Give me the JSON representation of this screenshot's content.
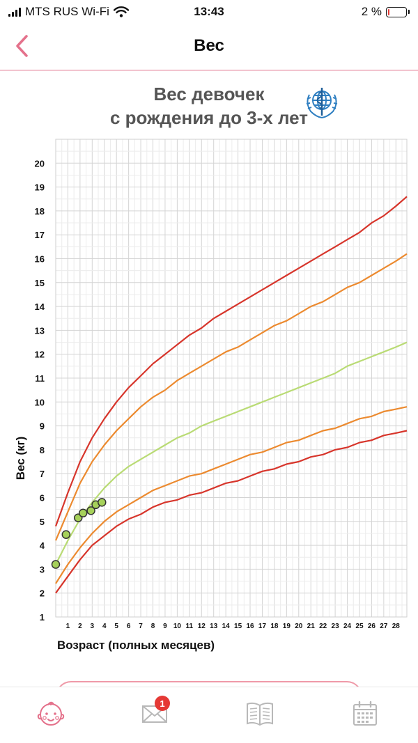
{
  "status_bar": {
    "carrier": "MTS RUS Wi-Fi",
    "time": "13:43",
    "battery": "2 %"
  },
  "nav": {
    "title": "Вес"
  },
  "header": {
    "title_line1": "Вес девочек",
    "title_line2": "с рождения до 3-х лет"
  },
  "chart_data": {
    "type": "line",
    "title": "Вес девочек с рождения до 3-х лет",
    "xlabel": "Возраст (полных месяцев)",
    "ylabel": "Вес (кг)",
    "xlim": [
      0,
      28.9
    ],
    "ylim": [
      1,
      21
    ],
    "x_ticks": [
      1,
      2,
      3,
      4,
      5,
      6,
      7,
      8,
      9,
      10,
      11,
      12,
      13,
      14,
      15,
      16,
      17,
      18,
      19,
      20,
      21,
      22,
      23,
      24,
      25,
      26,
      27,
      28
    ],
    "y_ticks": [
      1,
      2,
      3,
      4,
      5,
      6,
      7,
      8,
      9,
      10,
      11,
      12,
      13,
      14,
      15,
      16,
      17,
      18,
      19,
      20
    ],
    "grid": true,
    "series": [
      {
        "color": "#d7352b",
        "x": [
          0,
          1,
          2,
          3,
          4,
          5,
          6,
          7,
          8,
          9,
          10,
          11,
          12,
          13,
          14,
          15,
          16,
          17,
          18,
          19,
          20,
          21,
          22,
          23,
          24,
          25,
          26,
          27,
          28,
          28.9
        ],
        "values": [
          4.8,
          6.2,
          7.5,
          8.5,
          9.3,
          10.0,
          10.6,
          11.1,
          11.6,
          12.0,
          12.4,
          12.8,
          13.1,
          13.5,
          13.8,
          14.1,
          14.4,
          14.7,
          15.0,
          15.3,
          15.6,
          15.9,
          16.2,
          16.5,
          16.8,
          17.1,
          17.5,
          17.8,
          18.2,
          18.6
        ]
      },
      {
        "color": "#ec8a2f",
        "x": [
          0,
          1,
          2,
          3,
          4,
          5,
          6,
          7,
          8,
          9,
          10,
          11,
          12,
          13,
          14,
          15,
          16,
          17,
          18,
          19,
          20,
          21,
          22,
          23,
          24,
          25,
          26,
          27,
          28,
          28.9
        ],
        "values": [
          4.2,
          5.4,
          6.6,
          7.5,
          8.2,
          8.8,
          9.3,
          9.8,
          10.2,
          10.5,
          10.9,
          11.2,
          11.5,
          11.8,
          12.1,
          12.3,
          12.6,
          12.9,
          13.2,
          13.4,
          13.7,
          14.0,
          14.2,
          14.5,
          14.8,
          15.0,
          15.3,
          15.6,
          15.9,
          16.2
        ]
      },
      {
        "color": "#b9db74",
        "x": [
          0,
          1,
          2,
          3,
          4,
          5,
          6,
          7,
          8,
          9,
          10,
          11,
          12,
          13,
          14,
          15,
          16,
          17,
          18,
          19,
          20,
          21,
          22,
          23,
          24,
          25,
          26,
          27,
          28,
          28.9
        ],
        "values": [
          3.2,
          4.2,
          5.1,
          5.8,
          6.4,
          6.9,
          7.3,
          7.6,
          7.9,
          8.2,
          8.5,
          8.7,
          9.0,
          9.2,
          9.4,
          9.6,
          9.8,
          10.0,
          10.2,
          10.4,
          10.6,
          10.8,
          11.0,
          11.2,
          11.5,
          11.7,
          11.9,
          12.1,
          12.3,
          12.5
        ]
      },
      {
        "color": "#ec8a2f",
        "x": [
          0,
          1,
          2,
          3,
          4,
          5,
          6,
          7,
          8,
          9,
          10,
          11,
          12,
          13,
          14,
          15,
          16,
          17,
          18,
          19,
          20,
          21,
          22,
          23,
          24,
          25,
          26,
          27,
          28,
          28.9
        ],
        "values": [
          2.4,
          3.2,
          3.9,
          4.5,
          5.0,
          5.4,
          5.7,
          6.0,
          6.3,
          6.5,
          6.7,
          6.9,
          7.0,
          7.2,
          7.4,
          7.6,
          7.8,
          7.9,
          8.1,
          8.3,
          8.4,
          8.6,
          8.8,
          8.9,
          9.1,
          9.3,
          9.4,
          9.6,
          9.7,
          9.8
        ]
      },
      {
        "color": "#d7352b",
        "x": [
          0,
          1,
          2,
          3,
          4,
          5,
          6,
          7,
          8,
          9,
          10,
          11,
          12,
          13,
          14,
          15,
          16,
          17,
          18,
          19,
          20,
          21,
          22,
          23,
          24,
          25,
          26,
          27,
          28,
          28.9
        ],
        "values": [
          2.0,
          2.7,
          3.4,
          4.0,
          4.4,
          4.8,
          5.1,
          5.3,
          5.6,
          5.8,
          5.9,
          6.1,
          6.2,
          6.4,
          6.6,
          6.7,
          6.9,
          7.1,
          7.2,
          7.4,
          7.5,
          7.7,
          7.8,
          8.0,
          8.1,
          8.3,
          8.4,
          8.6,
          8.7,
          8.8
        ]
      }
    ],
    "points": [
      {
        "x": 0.0,
        "y": 3.2
      },
      {
        "x": 0.85,
        "y": 4.45
      },
      {
        "x": 1.85,
        "y": 5.15
      },
      {
        "x": 2.25,
        "y": 5.35
      },
      {
        "x": 2.9,
        "y": 5.45
      },
      {
        "x": 3.3,
        "y": 5.7
      },
      {
        "x": 3.8,
        "y": 5.8
      }
    ],
    "point_color": "#a6d15a"
  },
  "tabs": {
    "child": "baby-face-icon",
    "messages": "envelope-icon",
    "messages_badge": "1",
    "library": "open-book-icon",
    "calendar": "calendar-icon"
  },
  "colors": {
    "accent": "#e4718b",
    "tab_icon": "#b8b8b8"
  }
}
